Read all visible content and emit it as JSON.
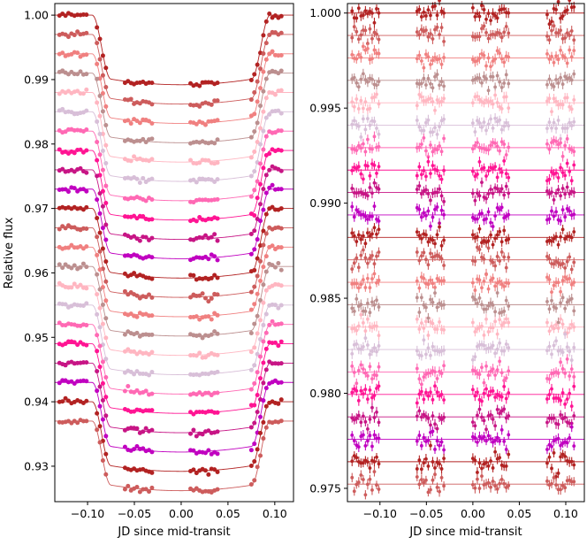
{
  "colors": [
    "#b22222",
    "#cd5c5c",
    "#f08080",
    "#bc8f8f",
    "#ffb6c1",
    "#d8bfd8",
    "#ff69b4",
    "#ff1493",
    "#c71585",
    "#c000c0"
  ],
  "chart_data": [
    {
      "type": "scatter",
      "title": "",
      "xlabel": "JD since mid-transit",
      "ylabel": "Relative flux",
      "xlim": [
        -0.135,
        0.12
      ],
      "ylim": [
        0.9245,
        1.0018
      ],
      "xticks": [
        -0.1,
        -0.05,
        0.0,
        0.05,
        0.1
      ],
      "xtick_labels": [
        "−0.10",
        "−0.05",
        "0.00",
        "0.05",
        "0.10"
      ],
      "yticks": [
        0.93,
        0.94,
        0.95,
        0.96,
        0.97,
        0.98,
        0.99,
        1.0
      ],
      "ytick_labels": [
        "0.93",
        "0.94",
        "0.95",
        "0.96",
        "0.97",
        "0.98",
        "0.99",
        "1.00"
      ],
      "n_light_curves": 22,
      "baseline_top": 1.0,
      "baseline_step": 0.003,
      "transit_depth": 0.0108,
      "ingress_start": -0.095,
      "ingress_end": -0.075,
      "egress_start": 0.075,
      "egress_end": 0.095,
      "observed_windows": [
        [
          -0.13,
          -0.1
        ],
        [
          -0.09,
          -0.08
        ],
        [
          -0.06,
          -0.03
        ],
        [
          0.01,
          0.04
        ],
        [
          0.075,
          0.11
        ]
      ]
    },
    {
      "type": "scatter",
      "title": "",
      "xlabel": "JD since mid-transit",
      "ylabel": "",
      "xlim": [
        -0.135,
        0.12
      ],
      "ylim": [
        0.9743,
        1.0005
      ],
      "xticks": [
        -0.1,
        -0.05,
        0.0,
        0.05,
        0.1
      ],
      "xtick_labels": [
        "−0.10",
        "−0.05",
        "0.00",
        "0.05",
        "0.10"
      ],
      "yticks": [
        0.975,
        0.98,
        0.985,
        0.99,
        0.995,
        1.0
      ],
      "ytick_labels": [
        "0.975",
        "0.980",
        "0.985",
        "0.990",
        "0.995",
        "1.000"
      ],
      "n_residual_series": 22,
      "baseline_top": 1.0,
      "baseline_step": 0.00118,
      "observed_windows": [
        [
          -0.13,
          -0.1
        ],
        [
          -0.06,
          -0.03
        ],
        [
          0.0,
          0.04
        ],
        [
          0.08,
          0.11
        ]
      ]
    }
  ]
}
